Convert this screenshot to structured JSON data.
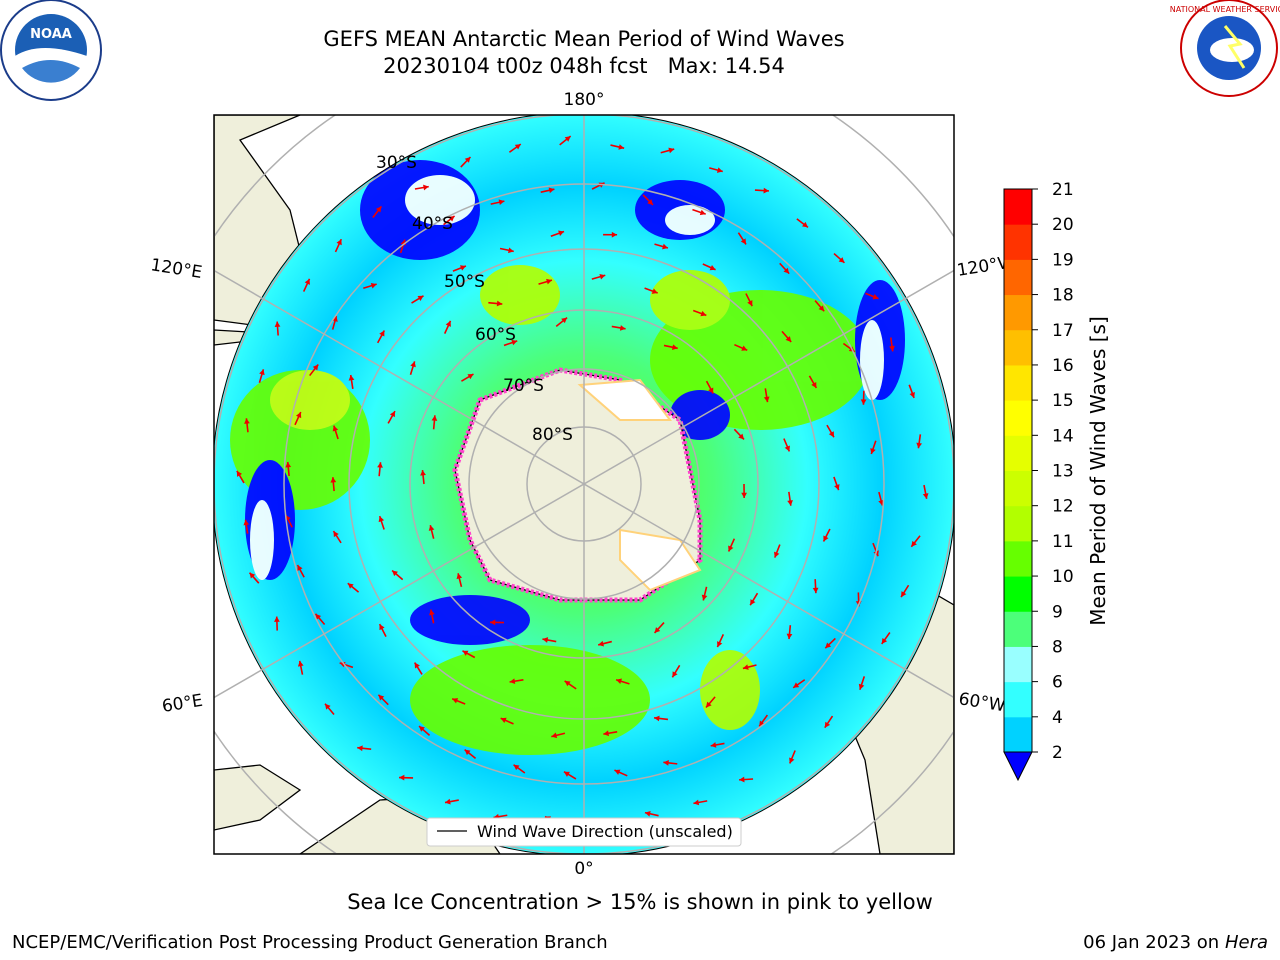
{
  "header": {
    "title_line1": "GEFS MEAN Antarctic Mean Period of Wind Waves",
    "title_line2": "20230104 t00z 048h fcst   Max: 14.54"
  },
  "logos": {
    "left": {
      "name": "NOAA",
      "ring_text": "NATIONAL OCEANIC AND ATMOSPHERIC ADMINISTRATION • U.S. DEPARTMENT OF COMMERCE •"
    },
    "right": {
      "name": "NATIONAL WEATHER SERVICE"
    }
  },
  "map": {
    "projection": "South Polar Stereographic",
    "lon_labels": {
      "top": "180°",
      "bottom": "0°",
      "upper_left": "120°E",
      "upper_right": "120°W",
      "lower_left": "60°E",
      "lower_right": "60°W"
    },
    "lat_labels": [
      "30°S",
      "40°S",
      "50°S",
      "60°S",
      "70°S",
      "80°S"
    ],
    "legend": "Wind Wave Direction (unscaled)"
  },
  "colorbar": {
    "label": "Mean Period of Wind Waves [s]",
    "ticks": [
      "2",
      "4",
      "6",
      "8",
      "9",
      "10",
      "11",
      "12",
      "13",
      "14",
      "15",
      "16",
      "17",
      "18",
      "19",
      "20",
      "21"
    ],
    "colors": [
      "#0073ff",
      "#00d2ff",
      "#33ffff",
      "#99ffff",
      "#4cff7a",
      "#00ff00",
      "#66ff00",
      "#b2ff00",
      "#ccff00",
      "#e5ff00",
      "#ffff00",
      "#ffe600",
      "#ffbf00",
      "#ff9900",
      "#ff6600",
      "#ff3300",
      "#ff0000"
    ],
    "under_color": "#0000ff"
  },
  "caption": "Sea Ice Concentration > 15% is shown in pink to yellow",
  "footer": {
    "left": "NCEP/EMC/Verification Post Processing Product Generation Branch",
    "date": "06 Jan 2023 on ",
    "host": "Hera"
  }
}
